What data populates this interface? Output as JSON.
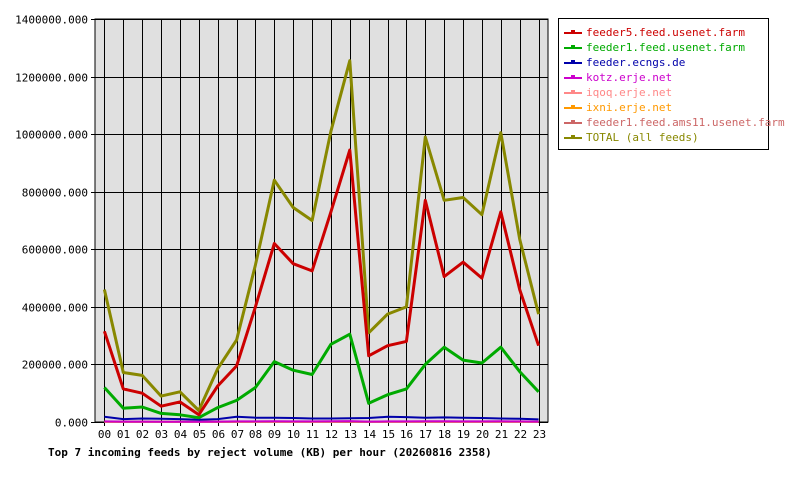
{
  "chart_data": {
    "type": "line",
    "title": "Top 7 incoming feeds by reject volume (KB) per hour (20260816 2358)",
    "xlabel": "",
    "ylabel": "",
    "categories": [
      "00",
      "01",
      "02",
      "03",
      "04",
      "05",
      "06",
      "07",
      "08",
      "09",
      "10",
      "11",
      "12",
      "13",
      "14",
      "15",
      "16",
      "17",
      "18",
      "19",
      "20",
      "21",
      "22",
      "23"
    ],
    "ylim": [
      0,
      1400000
    ],
    "yticks": [
      "0.000",
      "200000.000",
      "400000.000",
      "600000.000",
      "800000.000",
      "1000000.000",
      "1200000.000",
      "1400000.000"
    ],
    "grid": true,
    "legend_position": "right",
    "series": [
      {
        "name": "feeder5.feed.usenet.farm",
        "color": "#cc0000",
        "values": [
          315000,
          115000,
          100000,
          55000,
          70000,
          25000,
          125000,
          195000,
          400000,
          620000,
          550000,
          525000,
          730000,
          945000,
          230000,
          265000,
          280000,
          770000,
          505000,
          555000,
          500000,
          730000,
          460000,
          265000
        ]
      },
      {
        "name": "feeder1.feed.usenet.farm",
        "color": "#00aa00",
        "values": [
          120000,
          48000,
          52000,
          30000,
          25000,
          15000,
          50000,
          75000,
          120000,
          210000,
          180000,
          165000,
          270000,
          305000,
          65000,
          95000,
          115000,
          200000,
          260000,
          215000,
          205000,
          260000,
          175000,
          105000
        ]
      },
      {
        "name": "feeder.ecngs.de",
        "color": "#0000aa",
        "values": [
          18000,
          10000,
          12000,
          11000,
          10000,
          8000,
          10000,
          18000,
          15000,
          15000,
          14000,
          12000,
          12000,
          13000,
          14000,
          18000,
          17000,
          15000,
          16000,
          15000,
          14000,
          12000,
          11000,
          9000
        ]
      },
      {
        "name": "kotz.erje.net",
        "color": "#cc00cc",
        "values": [
          2000,
          1500,
          1500,
          1200,
          1200,
          1000,
          1500,
          2000,
          2000,
          2500,
          2000,
          2000,
          2500,
          3000,
          1500,
          2000,
          2000,
          2500,
          2500,
          2000,
          2000,
          2500,
          2000,
          1500
        ]
      },
      {
        "name": "iqoq.erje.net",
        "color": "#ff8888",
        "values": [
          1000,
          800,
          800,
          600,
          600,
          500,
          800,
          1000,
          1000,
          1200,
          1000,
          1000,
          1200,
          1500,
          800,
          1000,
          1000,
          1200,
          1200,
          1000,
          1000,
          1200,
          1000,
          800
        ]
      },
      {
        "name": "ixni.erje.net",
        "color": "#ff9900",
        "values": [
          800,
          600,
          600,
          500,
          500,
          400,
          600,
          800,
          800,
          1000,
          800,
          800,
          1000,
          1200,
          600,
          800,
          800,
          1000,
          1000,
          800,
          800,
          1000,
          800,
          600
        ]
      },
      {
        "name": "feeder1.feed.ams11.usenet.farm",
        "color": "#cc6666",
        "values": [
          500,
          400,
          400,
          300,
          300,
          200,
          400,
          500,
          500,
          600,
          500,
          500,
          600,
          800,
          400,
          500,
          500,
          600,
          600,
          500,
          500,
          600,
          500,
          400
        ]
      },
      {
        "name": "TOTAL (all feeds)",
        "color": "#888800",
        "values": [
          460000,
          172000,
          162000,
          90000,
          105000,
          40000,
          185000,
          285000,
          545000,
          840000,
          745000,
          700000,
          1010000,
          1255000,
          310000,
          375000,
          400000,
          990000,
          770000,
          780000,
          720000,
          1005000,
          635000,
          375000
        ]
      }
    ]
  }
}
